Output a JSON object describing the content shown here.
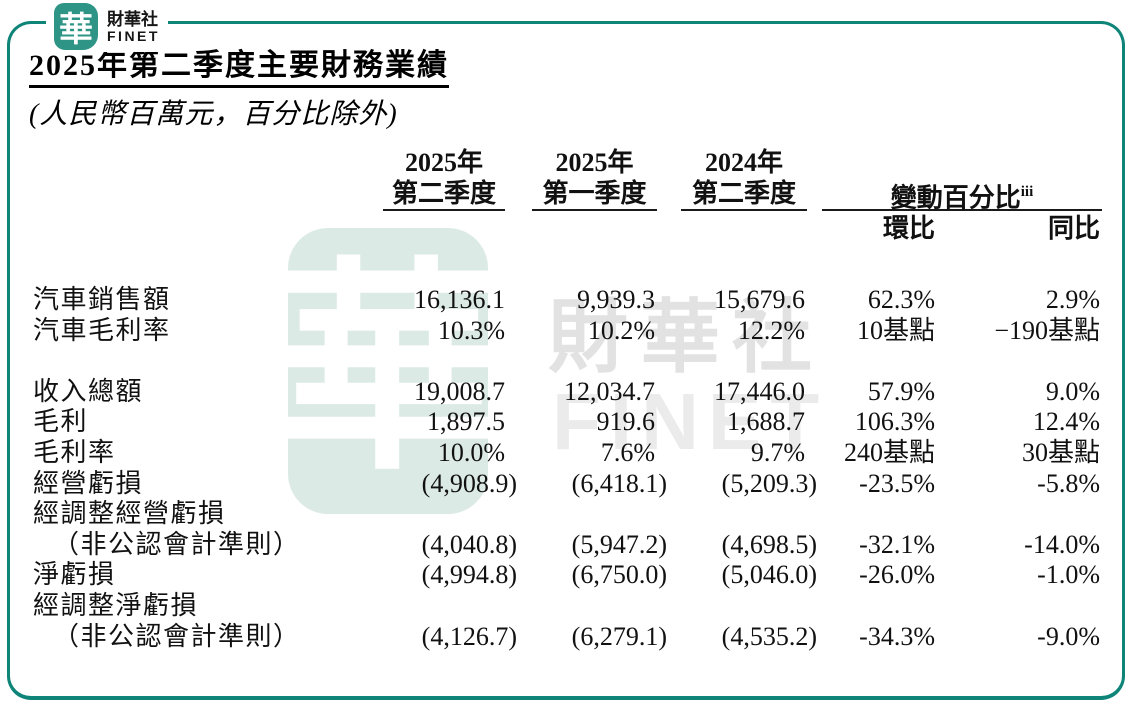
{
  "brand": {
    "logo_char": "華",
    "logo_name_cn": "財華社",
    "logo_name_en": "FINET"
  },
  "doc": {
    "title": "2025年第二季度主要財務業績",
    "subtitle": "(人民幣百萬元，百分比除外)"
  },
  "table": {
    "columns": {
      "col1_line1": "2025年",
      "col1_line2": "第二季度",
      "col2_line1": "2025年",
      "col2_line2": "第一季度",
      "col3_line1": "2024年",
      "col3_line2": "第二季度",
      "change_label": "變動百分比",
      "change_footnote": "iii",
      "qoq_label": "環比",
      "yoy_label": "同比"
    },
    "rows": [
      {
        "label": "汽車銷售額",
        "values": [
          "16,136.1",
          "9,939.3",
          "15,679.6",
          "62.3%",
          "2.9%"
        ]
      },
      {
        "label": "汽車毛利率",
        "values": [
          "10.3%",
          "10.2%",
          "12.2%",
          "10基點",
          "−190基點"
        ]
      },
      {
        "label": "收入總額",
        "values": [
          "19,008.7",
          "12,034.7",
          "17,446.0",
          "57.9%",
          "9.0%"
        ]
      },
      {
        "label": "毛利",
        "values": [
          "1,897.5",
          "919.6",
          "1,688.7",
          "106.3%",
          "12.4%"
        ]
      },
      {
        "label": "毛利率",
        "values": [
          "10.0%",
          "7.6%",
          "9.7%",
          "240基點",
          "30基點"
        ]
      },
      {
        "label": "經營虧損",
        "values": [
          "(4,908.9)",
          "(6,418.1)",
          "(5,209.3)",
          "-23.5%",
          "-5.8%"
        ]
      },
      {
        "label": "經調整經營虧損",
        "values": [
          "",
          "",
          "",
          "",
          ""
        ]
      },
      {
        "label": "（非公認會計準則）",
        "values": [
          "(4,040.8)",
          "(5,947.2)",
          "(4,698.5)",
          "-32.1%",
          "-14.0%"
        ]
      },
      {
        "label": "淨虧損",
        "values": [
          "(4,994.8)",
          "(6,750.0)",
          "(5,046.0)",
          "-26.0%",
          "-1.0%"
        ]
      },
      {
        "label": "經調整淨虧損",
        "values": [
          "",
          "",
          "",
          "",
          ""
        ]
      },
      {
        "label": "（非公認會計準則）",
        "values": [
          "(4,126.7)",
          "(6,279.1)",
          "(4,535.2)",
          "-34.3%",
          "-9.0%"
        ]
      }
    ]
  },
  "watermark": {
    "char": "華",
    "name_cn": "財華社",
    "name_en": "FINET"
  },
  "colors": {
    "frame_teal": "#0F8478",
    "logo_teal": "#2E9486",
    "rule_black": "#1A1A1A",
    "watermark_teal": "#DCEAE6",
    "watermark_gray": "#E2E2E2"
  }
}
